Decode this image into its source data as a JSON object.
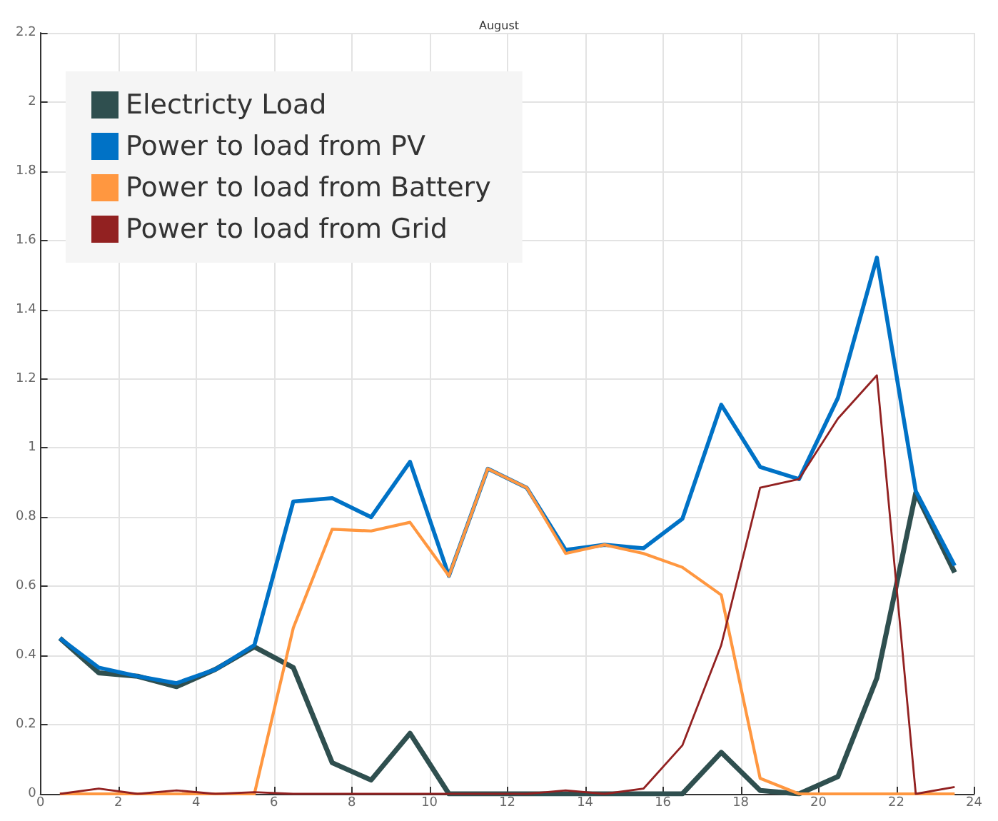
{
  "chart_data": {
    "type": "line",
    "title": "August",
    "x": [
      0.5,
      1.5,
      2.5,
      3.5,
      4.5,
      5.5,
      6.5,
      7.5,
      8.5,
      9.5,
      10.5,
      11.5,
      12.5,
      13.5,
      14.5,
      15.5,
      16.5,
      17.5,
      18.5,
      19.5,
      20.5,
      21.5,
      22.5,
      23.5
    ],
    "series": [
      {
        "name": "Electricty Load",
        "color": "#2f4f4f",
        "values": [
          0.45,
          0.35,
          0.34,
          0.31,
          0.36,
          0.425,
          0.365,
          0.09,
          0.04,
          0.175,
          0,
          0,
          0,
          0,
          0,
          0,
          0,
          0.12,
          0.01,
          0,
          0.05,
          0.335,
          0.87,
          0.64
        ]
      },
      {
        "name": "Power to load from PV",
        "color": "#0072c6",
        "values": [
          0.45,
          0.365,
          0.34,
          0.32,
          0.36,
          0.43,
          0.845,
          0.855,
          0.8,
          0.96,
          0.63,
          0.94,
          0.885,
          0.705,
          0.72,
          0.71,
          0.795,
          1.125,
          0.945,
          0.91,
          1.145,
          1.55,
          0.875,
          0.66
        ]
      },
      {
        "name": "Power to load from Battery",
        "color": "#ff9740",
        "values": [
          0,
          0,
          0,
          0,
          0,
          0,
          0.48,
          0.765,
          0.76,
          0.785,
          0.63,
          0.94,
          0.885,
          0.695,
          0.72,
          0.695,
          0.655,
          0.575,
          0.045,
          0,
          0,
          0,
          0,
          0
        ]
      },
      {
        "name": "Power to load from Grid",
        "color": "#922121",
        "values": [
          0,
          0.015,
          0,
          0.01,
          0,
          0.005,
          0,
          0,
          0,
          0,
          0,
          0,
          0,
          0.01,
          0,
          0.015,
          0.14,
          0.43,
          0.885,
          0.91,
          1.085,
          1.21,
          0,
          0.02
        ]
      }
    ],
    "xlim": [
      0,
      24
    ],
    "xticks": [
      0,
      2,
      4,
      6,
      8,
      10,
      12,
      14,
      16,
      18,
      20,
      22,
      24
    ],
    "ylim": [
      0,
      2.2
    ],
    "yticks": [
      0,
      0.2,
      0.4,
      0.6,
      0.8,
      1,
      1.2,
      1.4,
      1.6,
      1.8,
      2,
      2.2
    ],
    "grid": true,
    "legend": "top left",
    "marker": "none",
    "line_style": "solid"
  }
}
